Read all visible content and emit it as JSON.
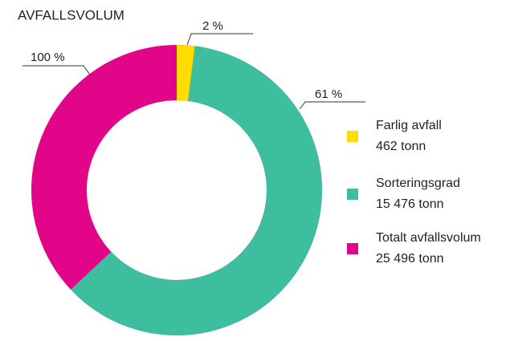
{
  "chart_data": {
    "type": "donut",
    "title": "AVFALLSVOLUM",
    "categories": [
      "Farlig avfall",
      "Sorteringsgrad",
      "Totalt avfallsvolum"
    ],
    "values": [
      2,
      61,
      100
    ],
    "value_labels": [
      "2 %",
      "61 %",
      "100 %"
    ],
    "colors": [
      "#ffdd00",
      "#3dbf9f",
      "#e2058a"
    ],
    "legend_details": [
      "462 tonn",
      "15 476 tonn",
      "25 496 tonn"
    ],
    "legend": "right"
  }
}
